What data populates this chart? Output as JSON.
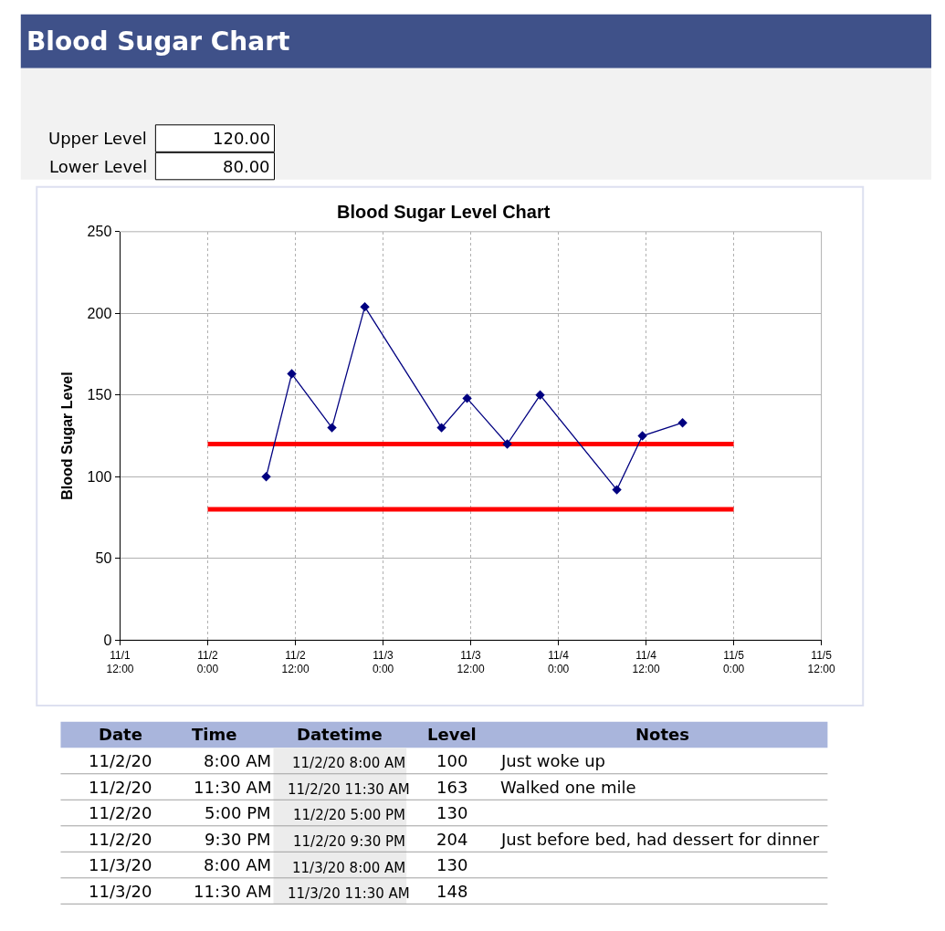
{
  "chart_data": {
    "type": "line",
    "title": "Blood Sugar Level Chart",
    "ylabel": "Blood Sugar Level",
    "xlim": [
      "--11-01T12:00",
      "--11-05T12:00"
    ],
    "xticks": [
      {
        "value": "--11-01T12:00",
        "label": "11/1\n12:00"
      },
      {
        "value": "--11-02T00:00",
        "label": "11/2\n0:00"
      },
      {
        "value": "--11-02T12:00",
        "label": "11/2\n12:00"
      },
      {
        "value": "--11-03T00:00",
        "label": "11/3\n0:00"
      },
      {
        "value": "--11-03T12:00",
        "label": "11/3\n12:00"
      },
      {
        "value": "--11-04T00:00",
        "label": "11/4\n0:00"
      },
      {
        "value": "--11-04T12:00",
        "label": "11/4\n12:00"
      },
      {
        "value": "--11-05T00:00",
        "label": "11/5\n0:00"
      },
      {
        "value": "--11-05T12:00",
        "label": "11/5\n12:00"
      }
    ],
    "ylim": [
      0,
      250
    ],
    "yticks": [
      0,
      50,
      100,
      150,
      200,
      250
    ],
    "grid": true,
    "marker": "diamond",
    "line_style": "solid",
    "series": [
      {
        "color": "#000080",
        "x": [
          "--11-02T08:00",
          "--11-02T11:30",
          "--11-02T17:00",
          "--11-02T21:30",
          "--11-03T08:00",
          "--11-03T11:30",
          "--11-03T17:00",
          "--11-03T21:30",
          "--11-04T08:00",
          "--11-04T11:30",
          "--11-04T17:00"
        ],
        "values": [
          100,
          163,
          130,
          204,
          130,
          148,
          120,
          150,
          92,
          125,
          133
        ]
      },
      {
        "color": "#ff0000",
        "marker": "none",
        "x": [
          "--11-02T00:00",
          "--11-05T00:00"
        ],
        "values": [
          120,
          120
        ]
      },
      {
        "color": "#ff0000",
        "marker": "none",
        "x": [
          "--11-02T00:00",
          "--11-05T00:00"
        ],
        "values": [
          80,
          80
        ]
      }
    ],
    "annotations": [
      "Blood Sugar Chart",
      "Upper Level\t120.00",
      "Lower Level\t80.00",
      "Date",
      "Time",
      "Datetime",
      "Level",
      "Notes",
      "11/2/20\t8:00 AM\t11/2/20 8:00 AM\t100\tJust woke up",
      "11/2/20\t11:30 AM\t11/2/20 11:30 AM\t163\tWalked one mile",
      "11/2/20\t5:00 PM\t11/2/20 5:00 PM\t130\t",
      "11/2/20\t9:30 PM\t11/2/20 9:30 PM\t204\tJust before bed, had dessert for dinner",
      "11/3/20\t8:00 AM\t11/3/20 8:00 AM\t130\t",
      "11/3/20\t11:30 AM\t11/3/20 11:30 AM\t148\t"
    ]
  }
}
